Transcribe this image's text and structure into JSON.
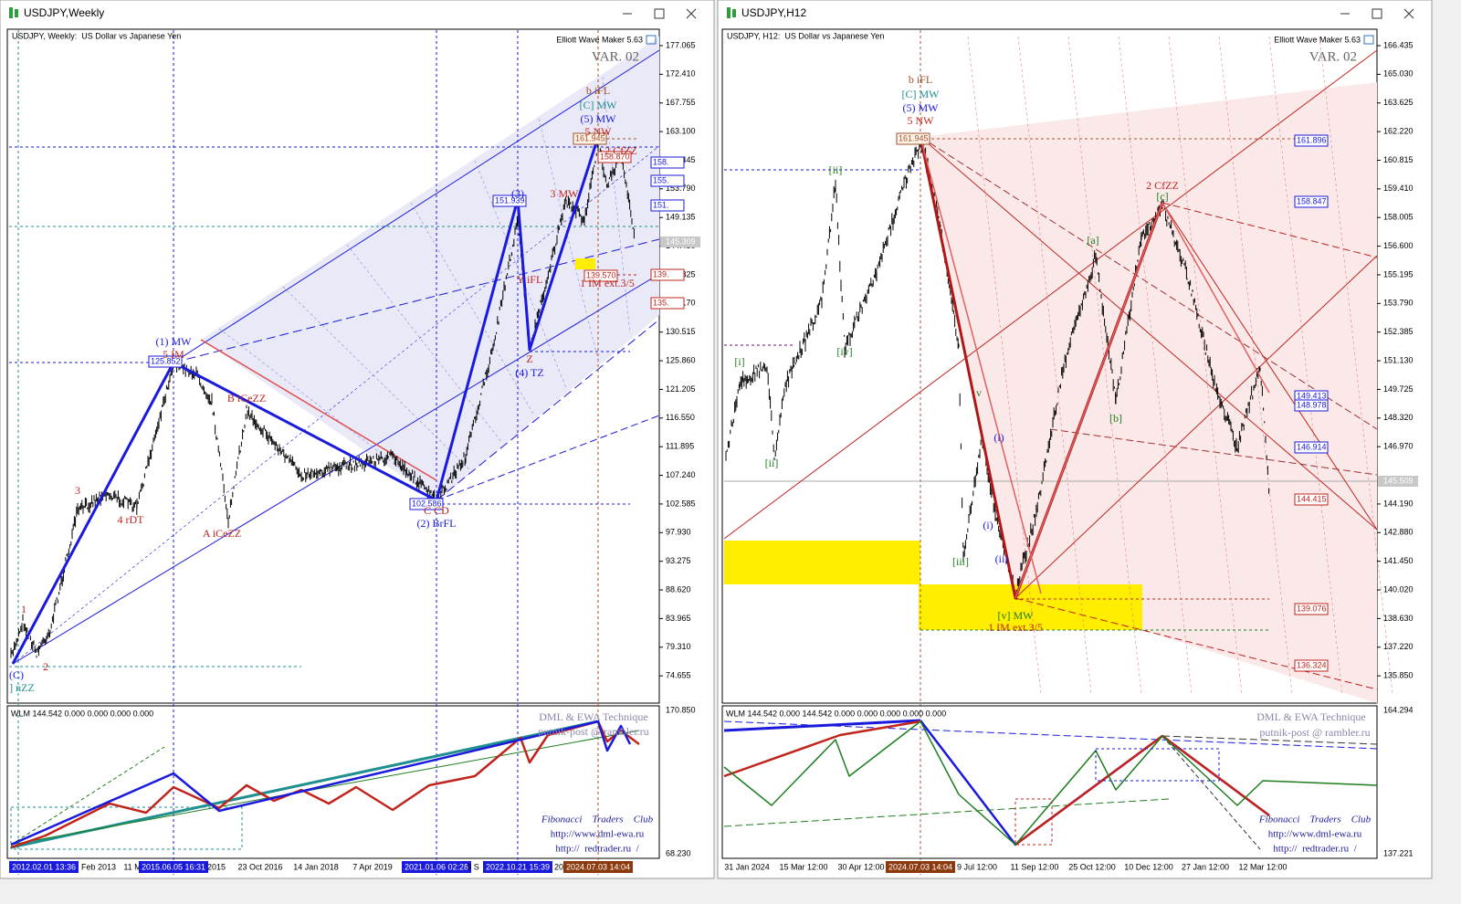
{
  "windows": [
    {
      "title": "USDJPY,Weekly",
      "header": "USDJPY, Weekly:  US Dollar vs Japanese Yen",
      "plugin": "Elliott Wave Maker 5.63",
      "variant": "VAR. 02",
      "price_axis": [
        "177.065",
        "172.410",
        "167.755",
        "163.100",
        "158.445",
        "153.790",
        "149.135",
        "144.450",
        "139.825",
        "135.170",
        "130.515",
        "125.860",
        "121.205",
        "116.550",
        "111.895",
        "107.240",
        "102.585",
        "97.930",
        "93.275",
        "88.620",
        "83.965",
        "79.310",
        "74.655"
      ],
      "current_price": "145.309",
      "price_tags": [
        "125.852",
        "151.939",
        "161.945",
        "158.870",
        "102.586",
        "139.570",
        "158.",
        "155.",
        "151.",
        "139.",
        "135."
      ],
      "wave_labels": [
        "(1) MW",
        "5 IM",
        "B iCeZZ",
        "A iCeZZ",
        "C CD",
        "(2) BrFL",
        "3",
        "4 rDT",
        "1",
        "2",
        "(C)",
        "] nZZ",
        "(3)",
        "(4) TZ",
        "Z",
        "3 MW",
        "Y iFL",
        "b iFL",
        "[C] MW",
        "(5) MW",
        "5 NW",
        "2 CfZZ",
        "1 IM ext.3/5"
      ],
      "dates": [
        "2012.02.01 13:36",
        "Feb 2013",
        "11 M",
        "2015.06.05 16:31",
        "2015",
        "23 Oct 2016",
        "14 Jan 2018",
        "7 Apr 2019",
        "2021.01.06 02:28",
        "9 S",
        "2022.10.21 15:39",
        "20",
        "2024.07.03 14:04"
      ],
      "indicator": {
        "header": "WLM 144.542 0.000 0.000 0.000 0.000",
        "axis": [
          "170.850",
          "68.230"
        ],
        "watermark": [
          "DML & EWA Technique",
          "putnik-post @ rambler.ru",
          "Fibonacci    Traders    Club",
          "http://www.dml-ewa.ru",
          "http://  redtrader.ru  /"
        ]
      }
    },
    {
      "title": "USDJPY,H12",
      "header": "USDJPY, H12:  US Dollar vs Japanese Yen",
      "plugin": "Elliott Wave Maker 5.63",
      "variant": "VAR. 02",
      "price_axis": [
        "166.435",
        "165.030",
        "163.625",
        "162.220",
        "160.815",
        "159.410",
        "158.005",
        "156.600",
        "155.195",
        "153.790",
        "152.385",
        "151.130",
        "149.725",
        "148.320",
        "146.970",
        "144.190",
        "142.880",
        "141.450",
        "140.020",
        "138.630",
        "137.220",
        "135.850"
      ],
      "current_price": "145.509",
      "price_tags": [
        "161.945",
        "161.896",
        "158.847",
        "149.413",
        "148.978",
        "146.914",
        "144.415",
        "139.076",
        "136.324"
      ],
      "wave_labels": [
        "b iFL",
        "[C] MW",
        "(5) MW",
        "5 NW",
        "2 CfZZ",
        "[c]",
        "[ii]",
        "[iv]",
        "[i]",
        "[ii]",
        "[iii]",
        "[a]",
        "[b]",
        "[v] MW",
        "1 IM ext.3/5",
        "(i)",
        "(i)",
        "(ii)",
        "v"
      ],
      "dates": [
        "31 Jan 2024",
        "15 Mar 12:00",
        "30 Apr 12:00",
        "2024.07.03 14:04",
        "9 Jul 12:00",
        "11 Sep 12:00",
        "25 Oct 12:00",
        "10 Dec 12:00",
        "27 Jan 12:00",
        "12 Mar 12:00"
      ],
      "indicator": {
        "header": "WLM 144.542 0.000 144.542 0.000 0.000 0.000 0.000 0.000",
        "axis": [
          "164.294",
          "137.221"
        ],
        "watermark": [
          "DML & EWA Technique",
          "putnik-post @ rambler.ru",
          "Fibonacci    Traders    Club",
          "http://www.dml-ewa.ru",
          "http://  redtrader.ru  /"
        ]
      }
    }
  ]
}
